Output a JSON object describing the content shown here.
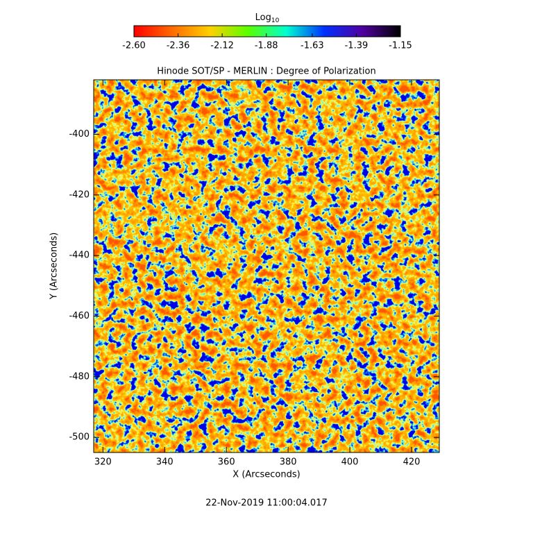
{
  "chart_data": {
    "type": "heatmap",
    "title": "Hinode SOT/SP - MERLIN : Degree of Polarization",
    "xlabel": "X (Arcseconds)",
    "ylabel": "Y (Arcseconds)",
    "footer": "22-Nov-2019 11:00:04.017",
    "colorbar_label": "Log",
    "colorbar_label_sub": "10",
    "colormap": [
      "#ff0000",
      "#ff6a00",
      "#ffd000",
      "#5aff00",
      "#00ffd0",
      "#0030ff",
      "#5000a0",
      "#000000"
    ],
    "clim": [
      -2.6,
      -1.15
    ],
    "cticks": [
      {
        "value": -2.6,
        "label": "-2.60"
      },
      {
        "value": -2.36,
        "label": "-2.36"
      },
      {
        "value": -2.12,
        "label": "-2.12"
      },
      {
        "value": -1.88,
        "label": "-1.88"
      },
      {
        "value": -1.63,
        "label": "-1.63"
      },
      {
        "value": -1.39,
        "label": "-1.39"
      },
      {
        "value": -1.15,
        "label": "-1.15"
      }
    ],
    "xlim": [
      317,
      429
    ],
    "xticks": [
      320,
      340,
      360,
      380,
      400,
      420
    ],
    "ylim": [
      -505,
      -382
    ],
    "yticks": [
      -500,
      -480,
      -460,
      -440,
      -420,
      -400
    ]
  }
}
